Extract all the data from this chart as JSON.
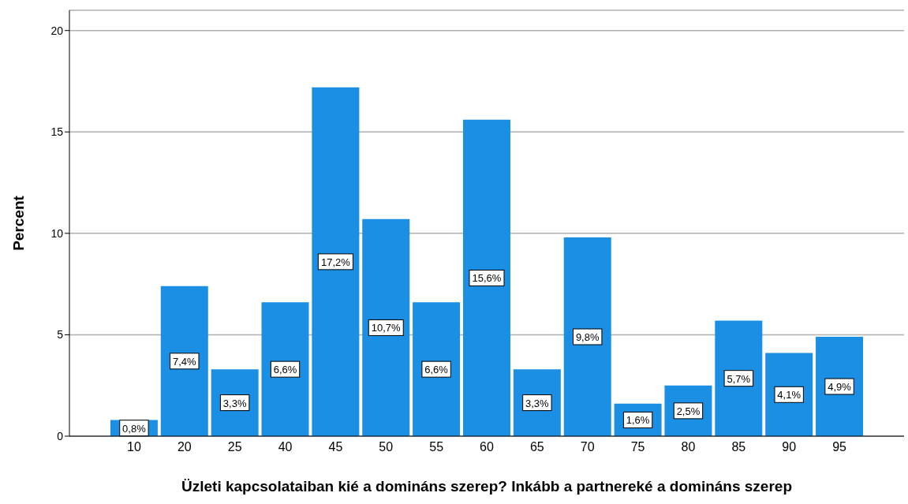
{
  "chart_data": {
    "type": "bar",
    "xlabel": "Üzleti kapcsolataiban kié a domináns szerep? Inkább a partnereké a domináns szerep",
    "ylabel": "Percent",
    "categories": [
      "10",
      "20",
      "25",
      "40",
      "45",
      "50",
      "55",
      "60",
      "65",
      "70",
      "75",
      "80",
      "85",
      "90",
      "95"
    ],
    "values": [
      0.8,
      7.4,
      3.3,
      6.6,
      17.2,
      10.7,
      6.6,
      15.6,
      3.3,
      9.8,
      1.6,
      2.5,
      5.7,
      4.1,
      4.9
    ],
    "value_labels": [
      "0,8%",
      "7,4%",
      "3,3%",
      "6,6%",
      "17,2%",
      "10,7%",
      "6,6%",
      "15,6%",
      "3,3%",
      "9,8%",
      "1,6%",
      "2,5%",
      "5,7%",
      "4,1%",
      "4,9%"
    ],
    "color": "#1a8fe3",
    "ylim": [
      0,
      21
    ],
    "yticks": [
      0,
      5,
      10,
      15,
      20
    ],
    "grid": "y"
  }
}
